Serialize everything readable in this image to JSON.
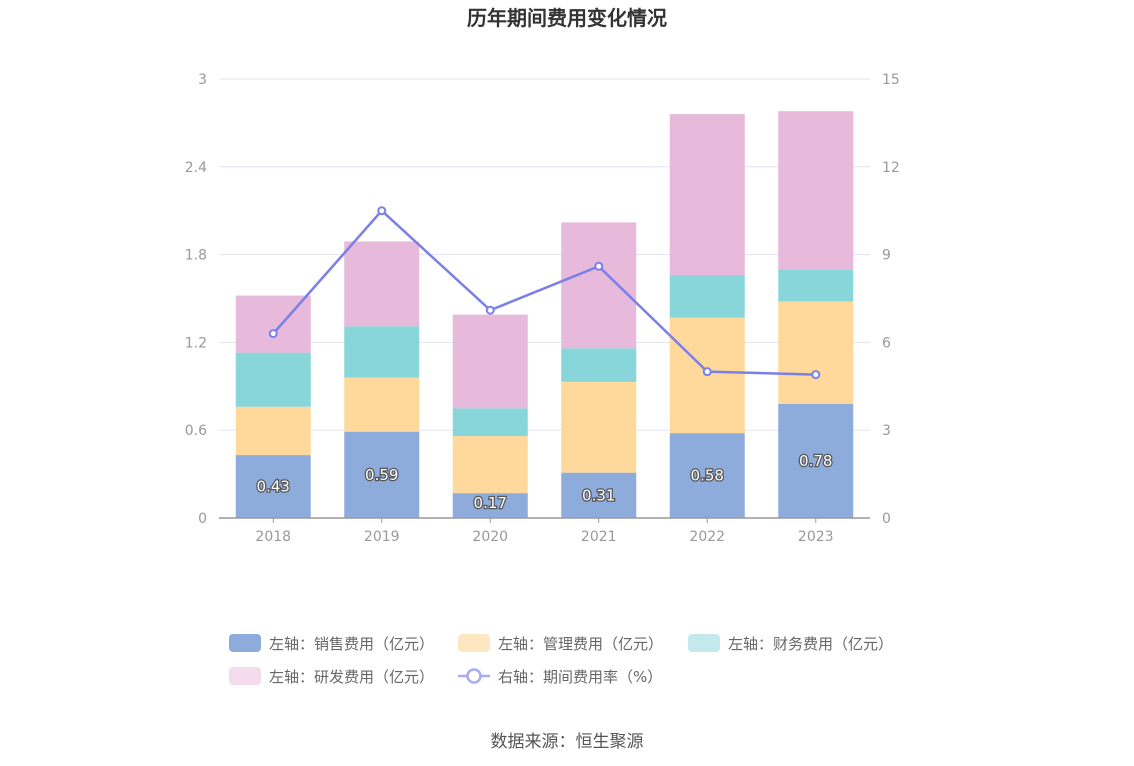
{
  "chart_data": {
    "type": "bar",
    "title": "历年期间费用变化情况",
    "categories": [
      "2018",
      "2019",
      "2020",
      "2021",
      "2022",
      "2023"
    ],
    "y_left": {
      "min": 0,
      "max": 3,
      "ticks": [
        "0",
        "0.6",
        "1.2",
        "1.8",
        "2.4",
        "3"
      ]
    },
    "y_right": {
      "min": 0,
      "max": 15,
      "ticks": [
        "0",
        "3",
        "6",
        "9",
        "12",
        "15"
      ]
    },
    "grid": true,
    "stacked": true,
    "series": [
      {
        "name": "左轴：销售费用（亿元）",
        "type": "bar",
        "axis": "left",
        "color": "#8eacdb",
        "values": [
          0.43,
          0.59,
          0.17,
          0.31,
          0.58,
          0.78
        ],
        "labels": [
          "0.43",
          "0.59",
          "0.17",
          "0.31",
          "0.58",
          "0.78"
        ]
      },
      {
        "name": "左轴：管理费用（亿元）",
        "type": "bar",
        "axis": "left",
        "color": "#fed99b",
        "values": [
          0.33,
          0.37,
          0.39,
          0.62,
          0.79,
          0.7
        ]
      },
      {
        "name": "左轴：财务费用（亿元）",
        "type": "bar",
        "axis": "left",
        "color": "#88d5da",
        "values": [
          0.37,
          0.35,
          0.19,
          0.23,
          0.29,
          0.22
        ]
      },
      {
        "name": "左轴：研发费用（亿元）",
        "type": "bar",
        "axis": "left",
        "color": "#e7b9da",
        "values": [
          0.39,
          0.58,
          0.64,
          0.86,
          1.1,
          1.08
        ]
      },
      {
        "name": "右轴：期间费用率（%）",
        "type": "line",
        "axis": "right",
        "color": "#7b7fe8",
        "values": [
          6.3,
          10.5,
          7.1,
          8.6,
          5.0,
          4.9
        ]
      }
    ],
    "legend_position": "bottom",
    "legend_colors": [
      "#8eacdb",
      "#fde7c3",
      "#c3e9ec",
      "#f5dcec",
      "#a9acf0"
    ]
  },
  "source": "数据来源：恒生聚源"
}
